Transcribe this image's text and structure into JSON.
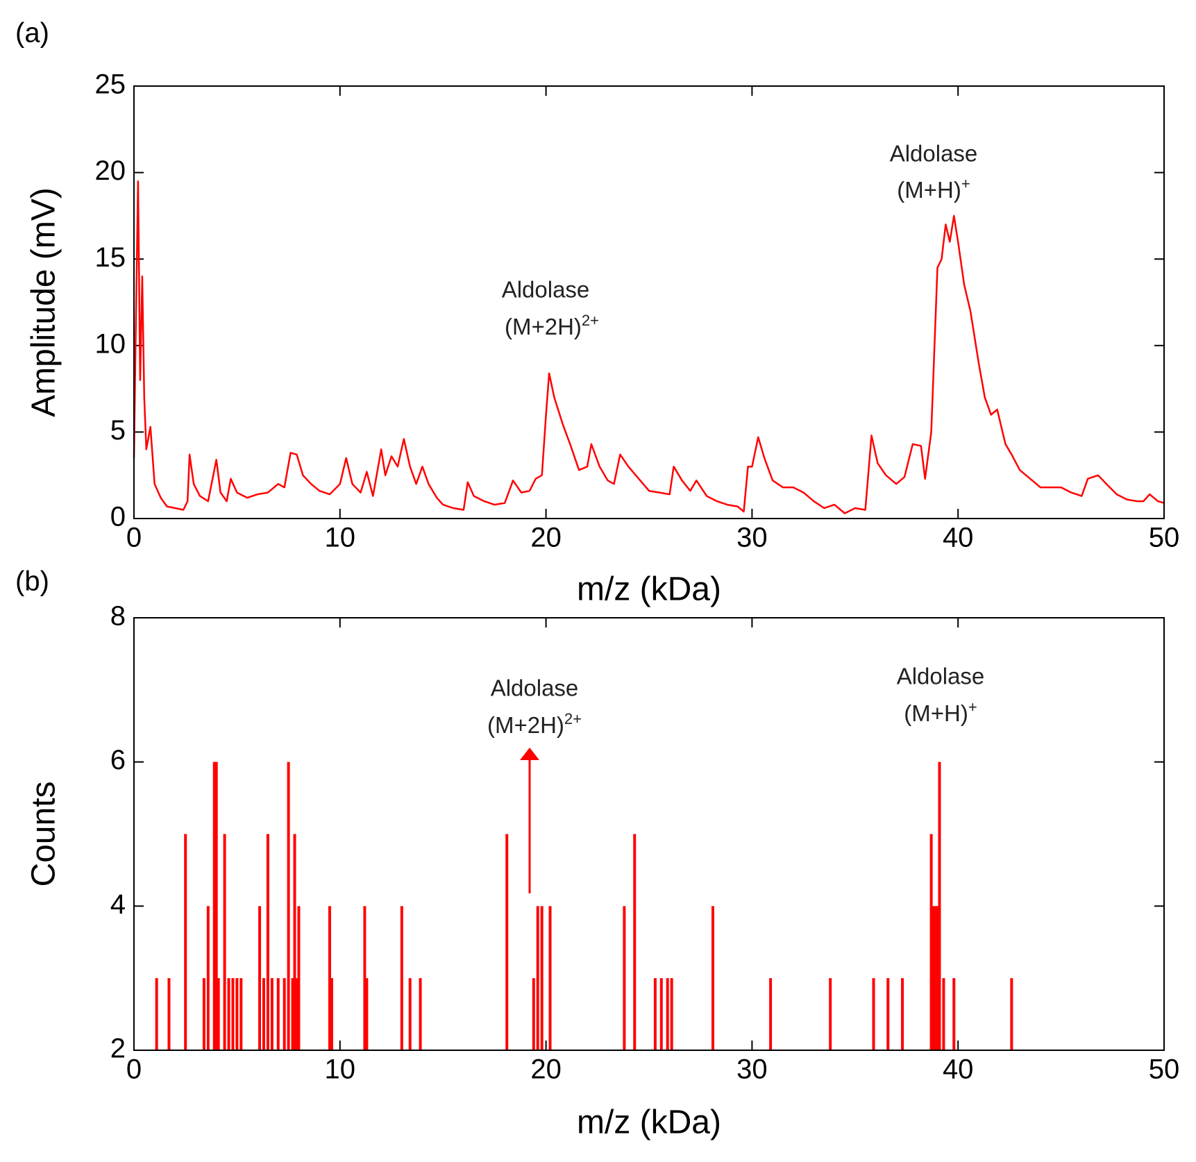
{
  "chart_data": [
    {
      "type": "line",
      "panel_label": "(a)",
      "xlabel": "m/z (kDa)",
      "ylabel": "Amplitude (mV)",
      "color": "#ff0000",
      "xlim": [
        0,
        50
      ],
      "xticks": [
        0,
        10,
        20,
        30,
        40,
        50
      ],
      "ylim": [
        0,
        25
      ],
      "yticks": [
        0,
        5,
        10,
        15,
        20,
        25
      ],
      "annotations": [
        {
          "line1": "Aldolase",
          "line2": "(M+2H)",
          "sup": "2+"
        },
        {
          "line1": "Aldolase",
          "line2": "(M+H)",
          "sup": "+"
        }
      ],
      "x": [
        0.0,
        0.1,
        0.2,
        0.3,
        0.4,
        0.5,
        0.6,
        0.8,
        1.0,
        1.3,
        1.6,
        2.0,
        2.4,
        2.6,
        2.7,
        2.9,
        3.2,
        3.6,
        4.0,
        4.2,
        4.5,
        4.7,
        5.0,
        5.5,
        6.0,
        6.5,
        7.0,
        7.3,
        7.6,
        7.9,
        8.2,
        8.6,
        9.0,
        9.5,
        10.0,
        10.3,
        10.6,
        11.0,
        11.3,
        11.6,
        12.0,
        12.2,
        12.5,
        12.8,
        13.1,
        13.4,
        13.7,
        14.0,
        14.3,
        14.7,
        15.0,
        15.5,
        16.0,
        16.2,
        16.5,
        17.0,
        17.5,
        18.0,
        18.4,
        18.8,
        19.2,
        19.5,
        19.8,
        20.0,
        20.15,
        20.4,
        20.8,
        21.2,
        21.6,
        22.0,
        22.2,
        22.6,
        23.0,
        23.3,
        23.6,
        24.0,
        24.5,
        25.0,
        25.5,
        26.0,
        26.2,
        26.6,
        27.0,
        27.3,
        27.8,
        28.3,
        28.8,
        29.3,
        29.6,
        29.8,
        30.0,
        30.3,
        30.6,
        31.0,
        31.5,
        32.0,
        32.5,
        33.0,
        33.5,
        34.0,
        34.5,
        35.0,
        35.5,
        35.8,
        36.1,
        36.5,
        37.0,
        37.4,
        37.8,
        38.2,
        38.4,
        38.7,
        39.0,
        39.2,
        39.4,
        39.6,
        39.8,
        40.0,
        40.3,
        40.6,
        41.0,
        41.3,
        41.6,
        41.9,
        42.3,
        42.6,
        43.0,
        43.5,
        44.0,
        44.5,
        45.0,
        45.5,
        46.0,
        46.3,
        46.8,
        47.2,
        47.7,
        48.2,
        48.7,
        49.0,
        49.3,
        49.7,
        50.0
      ],
      "values": [
        3.5,
        12,
        19.5,
        8,
        14,
        7,
        4,
        5.3,
        2,
        1.2,
        0.7,
        0.6,
        0.5,
        1.0,
        3.7,
        2.0,
        1.3,
        1.0,
        3.4,
        1.5,
        1.0,
        2.3,
        1.5,
        1.2,
        1.4,
        1.5,
        2.0,
        1.8,
        3.8,
        3.7,
        2.5,
        2.0,
        1.6,
        1.4,
        2.0,
        3.5,
        2.0,
        1.5,
        2.7,
        1.3,
        4.0,
        2.5,
        3.6,
        3.0,
        4.6,
        3.0,
        2.0,
        3.0,
        2.0,
        1.2,
        0.8,
        0.6,
        0.5,
        2.1,
        1.3,
        1.0,
        0.8,
        0.9,
        2.2,
        1.5,
        1.6,
        2.3,
        2.5,
        6.0,
        8.4,
        7.0,
        5.5,
        4.2,
        2.8,
        3.0,
        4.3,
        3.0,
        2.2,
        2.0,
        3.7,
        3.0,
        2.3,
        1.6,
        1.5,
        1.4,
        3.0,
        2.2,
        1.6,
        2.2,
        1.3,
        1.0,
        0.8,
        0.7,
        0.4,
        3.0,
        3.0,
        4.7,
        3.5,
        2.2,
        1.8,
        1.8,
        1.5,
        1.0,
        0.6,
        0.8,
        0.3,
        0.6,
        0.5,
        4.8,
        3.2,
        2.5,
        2.0,
        2.4,
        4.3,
        4.2,
        2.3,
        5.0,
        14.5,
        15.0,
        17.0,
        16.0,
        17.5,
        16.0,
        13.5,
        12.0,
        9.0,
        7.0,
        6.0,
        6.3,
        4.3,
        3.7,
        2.8,
        2.3,
        1.8,
        1.8,
        1.8,
        1.5,
        1.3,
        2.3,
        2.5,
        2.0,
        1.4,
        1.1,
        1.0,
        1.0,
        1.4,
        1.0,
        0.9
      ]
    },
    {
      "type": "bar",
      "panel_label": "(b)",
      "xlabel": "m/z (kDa)",
      "ylabel": "Counts",
      "color": "#ff0000",
      "xlim": [
        0,
        50
      ],
      "xticks": [
        0,
        10,
        20,
        30,
        40,
        50
      ],
      "ylim": [
        2,
        8
      ],
      "yticks": [
        2,
        4,
        6,
        8
      ],
      "annotations": [
        {
          "line1": "Aldolase",
          "line2": "(M+2H)",
          "sup": "2+"
        },
        {
          "line1": "Aldolase",
          "line2": "(M+H)",
          "sup": "+"
        }
      ],
      "x": [
        1.1,
        1.7,
        2.5,
        3.4,
        3.6,
        3.9,
        4.0,
        4.1,
        4.4,
        4.6,
        4.8,
        5.0,
        5.2,
        6.1,
        6.3,
        6.5,
        6.7,
        7.0,
        7.3,
        7.5,
        7.7,
        7.8,
        7.9,
        8.0,
        9.5,
        9.6,
        11.2,
        11.3,
        13.0,
        13.4,
        13.9,
        18.1,
        19.4,
        19.6,
        19.8,
        20.2,
        23.8,
        24.3,
        25.3,
        25.6,
        25.9,
        26.1,
        28.1,
        30.9,
        33.8,
        35.9,
        36.6,
        37.3,
        38.7,
        38.8,
        38.9,
        39.0,
        39.1,
        39.3,
        39.8,
        42.6
      ],
      "values": [
        3,
        3,
        5,
        3,
        4,
        6,
        6,
        3,
        5,
        3,
        3,
        3,
        3,
        4,
        3,
        5,
        3,
        3,
        3,
        6,
        3,
        5,
        3,
        4,
        4,
        3,
        4,
        3,
        4,
        3,
        3,
        5,
        3,
        4,
        4,
        4,
        4,
        5,
        3,
        3,
        3,
        3,
        4,
        3,
        3,
        3,
        3,
        3,
        5,
        4,
        4,
        4,
        6,
        3,
        3,
        3
      ]
    }
  ]
}
